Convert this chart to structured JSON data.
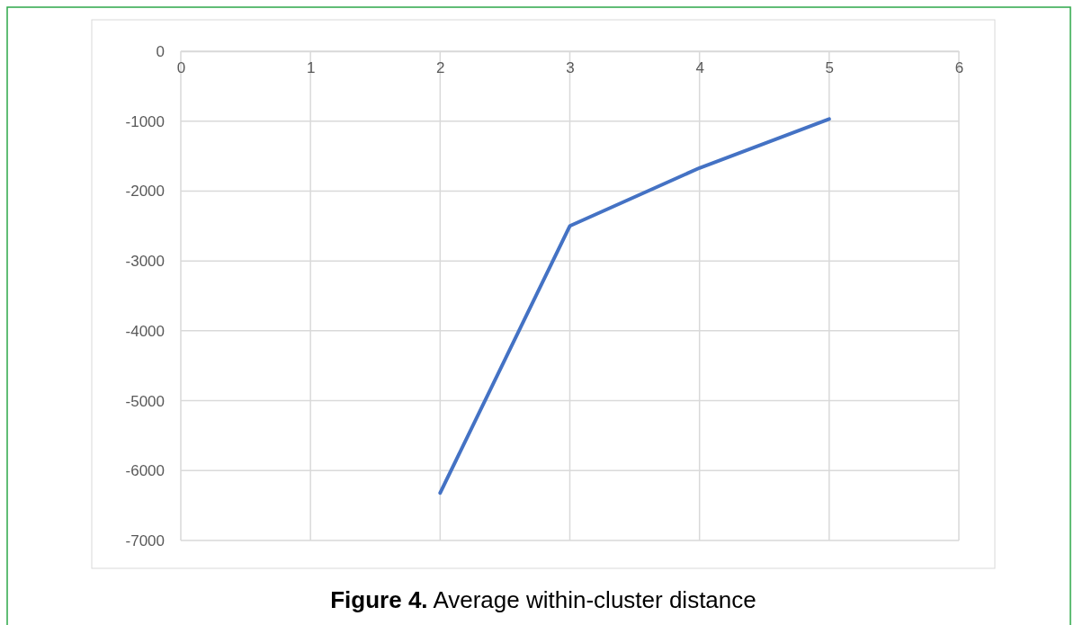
{
  "chart_data": {
    "type": "line",
    "title": "Figure 4. Average within-cluster distance",
    "x": [
      2,
      3,
      4,
      5
    ],
    "series": [
      {
        "color": "#4472c4",
        "values": [
          -6320,
          -2500,
          -1670,
          -970
        ]
      }
    ],
    "xlim": [
      0,
      6
    ],
    "xticks": [
      0,
      1,
      2,
      3,
      4,
      5,
      6
    ],
    "ylim": [
      -7000,
      0
    ],
    "yticks": [
      -7000,
      -6000,
      -5000,
      -4000,
      -3000,
      -2000,
      -1000,
      0
    ],
    "grid": true,
    "marker": "none",
    "line_style": "solid"
  }
}
